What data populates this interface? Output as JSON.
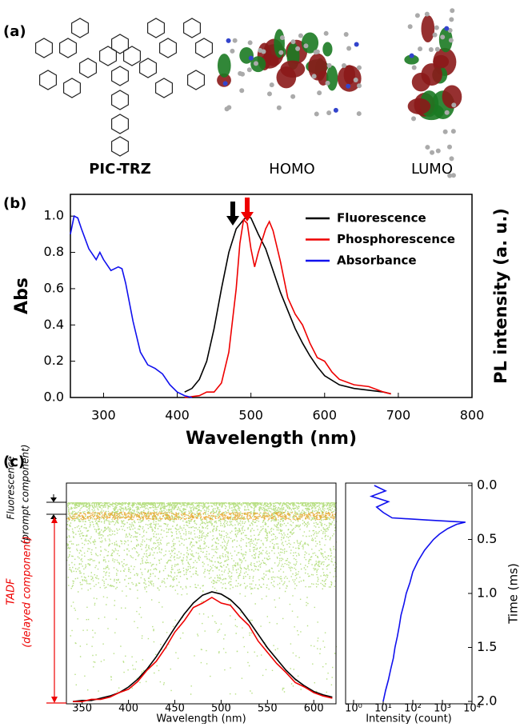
{
  "panel_labels": [
    "(a)",
    "(b)",
    "(c)"
  ],
  "molecules": [
    "PIC-TRZ",
    "HOMO",
    "LUMO"
  ],
  "chart_data": [
    {
      "type": "line",
      "xlabel": "Wavelength (nm)",
      "ylabel": "Abs",
      "y2label": "PL intensity (a. u.)",
      "xlim": [
        255,
        800
      ],
      "ylim": [
        0,
        1.12
      ],
      "xticks": [
        300,
        400,
        500,
        600,
        700,
        800
      ],
      "yticks": [
        {
          "value": 0,
          "label": "0.0"
        },
        0.2,
        0.4,
        0.6,
        0.8,
        {
          "value": 1,
          "label": "1.0"
        }
      ],
      "legend": "upper right",
      "series": [
        {
          "name": "Fluorescence",
          "color": "#000000",
          "x": [
            410,
            420,
            430,
            440,
            450,
            460,
            470,
            480,
            490,
            495,
            500,
            510,
            520,
            530,
            540,
            550,
            560,
            570,
            580,
            590,
            600,
            620,
            640,
            660,
            680,
            690
          ],
          "values": [
            0.03,
            0.05,
            0.1,
            0.2,
            0.38,
            0.6,
            0.8,
            0.93,
            0.98,
            1.0,
            0.99,
            0.9,
            0.82,
            0.7,
            0.58,
            0.48,
            0.38,
            0.3,
            0.23,
            0.17,
            0.12,
            0.07,
            0.05,
            0.04,
            0.03,
            0.02
          ]
        },
        {
          "name": "Phosphorescence",
          "color": "#ee0000",
          "x": [
            410,
            430,
            440,
            450,
            460,
            470,
            480,
            485,
            490,
            495,
            500,
            505,
            510,
            520,
            525,
            530,
            540,
            550,
            560,
            570,
            580,
            590,
            600,
            610,
            620,
            640,
            660,
            680,
            690
          ],
          "values": [
            0.0,
            0.01,
            0.03,
            0.03,
            0.08,
            0.25,
            0.6,
            0.85,
            0.98,
            0.96,
            0.82,
            0.72,
            0.8,
            0.93,
            0.97,
            0.92,
            0.75,
            0.55,
            0.46,
            0.4,
            0.3,
            0.22,
            0.2,
            0.14,
            0.1,
            0.07,
            0.06,
            0.03,
            0.02
          ]
        },
        {
          "name": "Absorbance",
          "color": "#1010ee",
          "x": [
            255,
            260,
            265,
            270,
            280,
            290,
            295,
            300,
            310,
            320,
            325,
            330,
            340,
            350,
            360,
            370,
            380,
            390,
            400,
            410,
            420
          ],
          "values": [
            0.9,
            1.0,
            0.99,
            0.93,
            0.82,
            0.76,
            0.8,
            0.76,
            0.7,
            0.72,
            0.71,
            0.63,
            0.42,
            0.25,
            0.18,
            0.16,
            0.13,
            0.07,
            0.03,
            0.01,
            0.0
          ]
        }
      ]
    },
    {
      "type": "line",
      "xlabel": "Wavelength (nm)",
      "xlim": [
        333,
        624
      ],
      "ylim": [
        0,
        1
      ],
      "xticks": [
        350,
        400,
        450,
        500,
        550,
        600
      ],
      "annotations": [
        "Fluorescence",
        "(prompt component)",
        "TADF",
        "(delayed component)"
      ],
      "series": [
        {
          "color": "#000000",
          "x": [
            340,
            350,
            360,
            370,
            380,
            390,
            400,
            410,
            420,
            430,
            440,
            450,
            460,
            470,
            480,
            490,
            500,
            510,
            520,
            530,
            540,
            550,
            560,
            570,
            580,
            590,
            600,
            610,
            620
          ],
          "values": [
            0.02,
            0.03,
            0.03,
            0.05,
            0.07,
            0.1,
            0.15,
            0.22,
            0.31,
            0.42,
            0.55,
            0.68,
            0.8,
            0.9,
            0.97,
            1.0,
            0.98,
            0.93,
            0.85,
            0.74,
            0.62,
            0.5,
            0.4,
            0.3,
            0.22,
            0.16,
            0.11,
            0.08,
            0.06
          ]
        },
        {
          "color": "#ee0000",
          "x": [
            340,
            350,
            360,
            370,
            380,
            390,
            400,
            410,
            420,
            430,
            440,
            450,
            460,
            470,
            480,
            490,
            500,
            510,
            520,
            530,
            540,
            550,
            560,
            570,
            580,
            590,
            600,
            610,
            620
          ],
          "values": [
            0.02,
            0.02,
            0.04,
            0.04,
            0.06,
            0.1,
            0.13,
            0.2,
            0.3,
            0.38,
            0.5,
            0.64,
            0.74,
            0.86,
            0.9,
            0.95,
            0.9,
            0.88,
            0.78,
            0.7,
            0.56,
            0.46,
            0.36,
            0.28,
            0.19,
            0.15,
            0.1,
            0.07,
            0.05
          ]
        }
      ]
    },
    {
      "type": "line",
      "xscale": "log",
      "xlabel": "Intensity (count)",
      "ylabel": "Time (ms)",
      "xlim": [
        1,
        10000
      ],
      "ylim": [
        2,
        0
      ],
      "xticks": [
        {
          "value": 1,
          "label": "10⁰"
        },
        {
          "value": 10,
          "label": "10¹"
        },
        {
          "value": 100,
          "label": "10²"
        },
        {
          "value": 1000,
          "label": "10³"
        },
        {
          "value": 10000,
          "label": "10⁴"
        }
      ],
      "yticks": [
        {
          "value": 0,
          "label": "0.0"
        },
        0.5,
        {
          "value": 1,
          "label": "1.0"
        },
        1.5,
        {
          "value": 2,
          "label": "2.0"
        }
      ],
      "series": [
        {
          "color": "#1010ee",
          "x": [
            5,
            12,
            4,
            15,
            6,
            10,
            20,
            300,
            6000,
            3000,
            1500,
            800,
            500,
            250,
            150,
            100,
            80,
            60,
            50,
            40,
            35,
            30,
            25,
            22,
            18,
            15,
            12,
            10
          ],
          "values": [
            0,
            0.05,
            0.1,
            0.15,
            0.2,
            0.25,
            0.3,
            0.32,
            0.34,
            0.36,
            0.4,
            0.45,
            0.5,
            0.6,
            0.7,
            0.8,
            0.9,
            1.0,
            1.1,
            1.2,
            1.3,
            1.4,
            1.5,
            1.6,
            1.7,
            1.8,
            1.9,
            2.0
          ]
        }
      ]
    }
  ]
}
